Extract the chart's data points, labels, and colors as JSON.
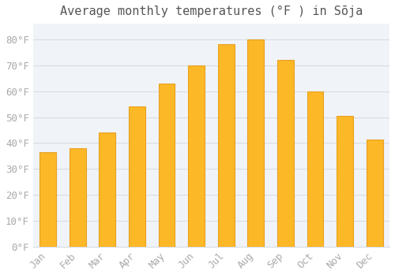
{
  "title": "Average monthly temperatures (°F ) in Sōja",
  "months": [
    "Jan",
    "Feb",
    "Mar",
    "Apr",
    "May",
    "Jun",
    "Jul",
    "Aug",
    "Sep",
    "Oct",
    "Nov",
    "Dec"
  ],
  "values": [
    36.5,
    38.0,
    44.0,
    54.0,
    63.0,
    70.0,
    78.0,
    80.0,
    72.0,
    60.0,
    50.5,
    41.5
  ],
  "bar_color": "#FDB827",
  "bar_edge_color": "#E8A020",
  "background_color": "#ffffff",
  "plot_bg_color": "#f0f4f8",
  "grid_color": "#d8dde4",
  "ylim": [
    0,
    86
  ],
  "yticks": [
    0,
    10,
    20,
    30,
    40,
    50,
    60,
    70,
    80
  ],
  "title_fontsize": 11,
  "tick_fontsize": 9,
  "font_family": "monospace",
  "tick_color": "#aaaaaa",
  "title_color": "#555555",
  "bar_width": 0.55
}
